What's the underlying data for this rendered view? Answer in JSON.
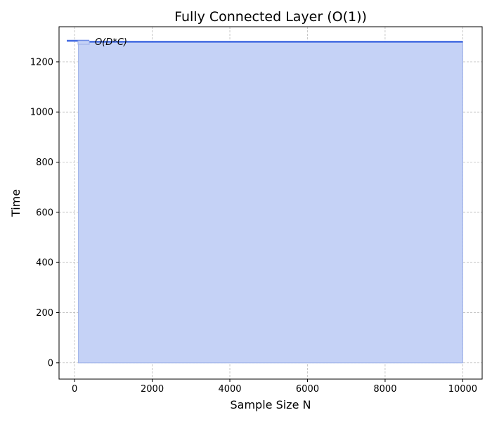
{
  "chart_data": {
    "type": "area",
    "title": "Fully Connected Layer (O(1))",
    "xlabel": "Sample Size N",
    "ylabel": "Time",
    "xlim": [
      -400,
      10500
    ],
    "ylim": [
      -65,
      1340
    ],
    "x_ticks": [
      0,
      2000,
      4000,
      6000,
      8000,
      10000
    ],
    "y_ticks": [
      0,
      200,
      400,
      600,
      800,
      1000,
      1200
    ],
    "x_tick_labels": [
      "0",
      "2000",
      "4000",
      "6000",
      "8000",
      "10000"
    ],
    "y_tick_labels": [
      "0",
      "200",
      "400",
      "600",
      "800",
      "1000",
      "1200"
    ],
    "grid": true,
    "legend_position": "top-left",
    "series": [
      {
        "name": "O(D*C)",
        "color": "#4169e1",
        "fill_color": "#c5d2f6",
        "x": [
          100,
          10000
        ],
        "values": [
          1280,
          1280
        ]
      }
    ]
  }
}
